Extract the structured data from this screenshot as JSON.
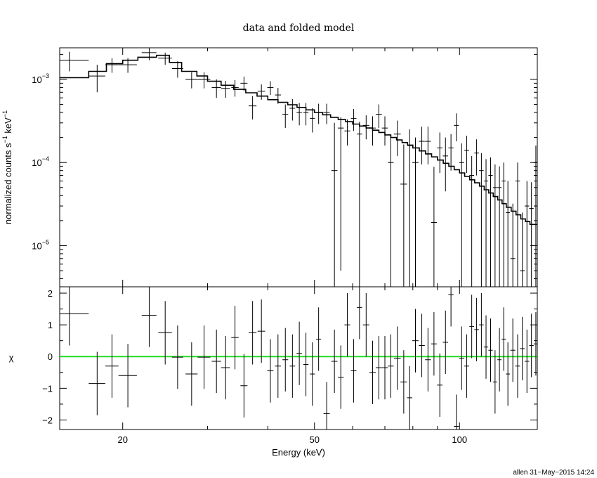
{
  "chart_data": [
    {
      "panel": "top",
      "type": "scatter",
      "title": "data and folded model",
      "xlabel": "",
      "ylabel": "normalized counts s^-1 keV^-1",
      "ylabel_parts": [
        "normalized counts s",
        "−1",
        " keV",
        "−1"
      ],
      "xscale": "log",
      "yscale": "log",
      "xlim": [
        14.8,
        145
      ],
      "ylim": [
        3.2e-06,
        0.0024
      ],
      "y_ticks": [
        {
          "value": 0.001,
          "base": "10",
          "exp": "−3"
        },
        {
          "value": 0.0001,
          "base": "10",
          "exp": "−4"
        },
        {
          "value": 1e-05,
          "base": "10",
          "exp": "−5"
        }
      ],
      "data_color": "#000000",
      "model_color": "#000000",
      "data": [
        [
          15.5,
          1.5,
          0.0017,
          0.00045,
          0.00045
        ],
        [
          17.7,
          0.7,
          0.0011,
          0.0004,
          0.0004
        ],
        [
          19.0,
          0.6,
          0.0015,
          0.0003,
          0.0003
        ],
        [
          20.5,
          0.9,
          0.0015,
          0.0003,
          0.0003
        ],
        [
          22.7,
          0.8,
          0.0021,
          0.0004,
          0.0004
        ],
        [
          24.5,
          0.8,
          0.0018,
          0.0003,
          0.0003
        ],
        [
          26.0,
          0.7,
          0.00135,
          0.0003,
          0.0003
        ],
        [
          27.8,
          0.8,
          0.001,
          0.00022,
          0.00022
        ],
        [
          29.5,
          0.9,
          0.001,
          0.00022,
          0.00022
        ],
        [
          31.3,
          0.7,
          0.0008,
          0.0002,
          0.0002
        ],
        [
          32.7,
          0.7,
          0.00078,
          0.00018,
          0.00018
        ],
        [
          34.2,
          0.6,
          0.0008,
          0.00018,
          0.00018
        ],
        [
          35.7,
          0.6,
          0.0009,
          0.00018,
          0.00018
        ],
        [
          37.2,
          0.7,
          0.00048,
          0.00015,
          0.00015
        ],
        [
          38.8,
          0.7,
          0.00072,
          0.00015,
          0.00015
        ],
        [
          40.5,
          0.6,
          0.0008,
          0.00015,
          0.00015
        ],
        [
          42.0,
          0.6,
          0.00065,
          0.00014,
          0.00014
        ],
        [
          43.5,
          0.6,
          0.00038,
          0.00012,
          0.00012
        ],
        [
          45.0,
          0.6,
          0.00045,
          0.00013,
          0.00013
        ],
        [
          46.5,
          0.6,
          0.0004,
          0.00012,
          0.00012
        ],
        [
          48.0,
          0.6,
          0.0004,
          0.00012,
          0.00012
        ],
        [
          49.5,
          0.6,
          0.00034,
          0.00011,
          0.00011
        ],
        [
          51.0,
          0.6,
          0.0004,
          0.00011,
          0.00011
        ],
        [
          53.0,
          0.8,
          0.0004,
          0.00011,
          0.00011
        ],
        [
          55.0,
          0.8,
          8e-05,
          0.00022,
          7.9e-05
        ],
        [
          56.7,
          0.8,
          0.00026,
          9e-05,
          0.000255
        ],
        [
          58.5,
          0.8,
          0.00024,
          9e-05,
          8e-05
        ],
        [
          60.3,
          0.8,
          0.00034,
          0.0001,
          0.0001
        ],
        [
          62.0,
          0.8,
          0.00022,
          9e-05,
          0.000218
        ],
        [
          64.0,
          1.0,
          0.00028,
          9e-05,
          9e-05
        ],
        [
          66.0,
          1.0,
          0.00026,
          0.0001,
          0.0001
        ],
        [
          68.0,
          1.0,
          0.00038,
          0.00012,
          0.00012
        ],
        [
          70.0,
          1.0,
          0.00026,
          0.0001,
          0.0001
        ],
        [
          72.0,
          1.0,
          0.0001,
          0.00011,
          9.9e-05
        ],
        [
          74.3,
          1.2,
          0.00022,
          0.0001,
          0.0001
        ],
        [
          76.6,
          1.2,
          5.5e-05,
          0.00011,
          5.4e-05
        ],
        [
          78.8,
          1.0,
          0.00016,
          9e-05,
          0.000159
        ],
        [
          81.0,
          1.2,
          0.0001,
          0.0001,
          9.9e-05
        ],
        [
          83.5,
          1.2,
          0.00018,
          9e-05,
          8.5e-05
        ],
        [
          86.0,
          1.2,
          0.00018,
          9e-05,
          8.5e-05
        ],
        [
          88.5,
          1.2,
          1.9e-05,
          7e-05,
          1.8e-05
        ],
        [
          91.0,
          1.2,
          0.00015,
          8e-05,
          7.5e-05
        ],
        [
          93.5,
          1.2,
          0.00012,
          8e-05,
          7.5e-05
        ],
        [
          96.0,
          1.2,
          0.00015,
          7e-05,
          7e-05
        ],
        [
          98.5,
          1.2,
          0.00028,
          0.00011,
          0.0001
        ],
        [
          101.0,
          1.2,
          0.0001,
          7e-05,
          9.9e-05
        ],
        [
          103.5,
          1.2,
          0.00014,
          7e-05,
          6.5e-05
        ],
        [
          106.0,
          1.2,
          7e-05,
          5e-05,
          6.9e-05
        ],
        [
          108.5,
          1.2,
          0.00013,
          6e-05,
          6e-05
        ],
        [
          111.0,
          1.2,
          8e-05,
          5e-05,
          7.9e-05
        ],
        [
          113.5,
          1.2,
          6e-05,
          5e-05,
          5.9e-05
        ],
        [
          116.0,
          1.2,
          7e-05,
          4.5e-05,
          6.9e-05
        ],
        [
          118.5,
          1.2,
          5e-05,
          4.5e-05,
          4.9e-05
        ],
        [
          121.0,
          1.2,
          5e-05,
          4e-05,
          4.9e-05
        ],
        [
          123.5,
          1.2,
          6e-05,
          4e-05,
          5.9e-05
        ],
        [
          126.0,
          1.2,
          2.5e-05,
          3.5e-05,
          2.4e-05
        ],
        [
          129.0,
          1.5,
          7e-06,
          2.5e-05,
          3.8e-06
        ],
        [
          132.0,
          1.5,
          6e-05,
          4e-05,
          5.9e-05
        ],
        [
          135.0,
          1.5,
          5e-06,
          2e-05,
          1.8e-06
        ],
        [
          138.0,
          1.5,
          3e-05,
          3e-05,
          2.9e-05
        ],
        [
          141.0,
          1.5,
          2.8e-05,
          3e-05,
          2.7e-05
        ],
        [
          144.0,
          1.5,
          0.0001,
          6e-05,
          9.9e-05
        ]
      ],
      "model": [
        [
          14.8,
          0.00105
        ],
        [
          17.0,
          0.00105
        ],
        [
          17.0,
          0.00125
        ],
        [
          18.5,
          0.00125
        ],
        [
          18.5,
          0.00155
        ],
        [
          20.0,
          0.00155
        ],
        [
          20.0,
          0.0017
        ],
        [
          21.5,
          0.0017
        ],
        [
          21.5,
          0.00185
        ],
        [
          23.5,
          0.00185
        ],
        [
          23.5,
          0.00195
        ],
        [
          25.0,
          0.00195
        ],
        [
          25.0,
          0.0016
        ],
        [
          26.5,
          0.0016
        ],
        [
          26.5,
          0.00125
        ],
        [
          28.5,
          0.00125
        ],
        [
          28.5,
          0.0011
        ],
        [
          30.0,
          0.0011
        ],
        [
          30.0,
          0.00095
        ],
        [
          32.0,
          0.00095
        ],
        [
          32.0,
          0.00085
        ],
        [
          34.0,
          0.00085
        ],
        [
          34.0,
          0.00076
        ],
        [
          36.0,
          0.00076
        ],
        [
          36.0,
          0.00069
        ],
        [
          38.0,
          0.00069
        ],
        [
          38.0,
          0.00063
        ],
        [
          40.0,
          0.00063
        ],
        [
          40.0,
          0.00057
        ],
        [
          42.0,
          0.00057
        ],
        [
          42.0,
          0.00053
        ],
        [
          44.0,
          0.00053
        ],
        [
          44.0,
          0.000495
        ],
        [
          46.0,
          0.000495
        ],
        [
          46.0,
          0.00046
        ],
        [
          48.0,
          0.00046
        ],
        [
          48.0,
          0.00043
        ],
        [
          50.0,
          0.00043
        ],
        [
          50.0,
          0.0004
        ],
        [
          52.0,
          0.0004
        ],
        [
          52.0,
          0.000375
        ],
        [
          54.0,
          0.000375
        ],
        [
          54.0,
          0.00035
        ],
        [
          56.0,
          0.00035
        ],
        [
          56.0,
          0.00033
        ],
        [
          58.0,
          0.00033
        ],
        [
          58.0,
          0.00031
        ],
        [
          60.0,
          0.00031
        ],
        [
          60.0,
          0.00029
        ],
        [
          62.0,
          0.00029
        ],
        [
          62.0,
          0.000275
        ],
        [
          64.0,
          0.000275
        ],
        [
          64.0,
          0.00026
        ],
        [
          66.0,
          0.00026
        ],
        [
          66.0,
          0.000245
        ],
        [
          68.0,
          0.000245
        ],
        [
          68.0,
          0.00023
        ],
        [
          70.0,
          0.00023
        ],
        [
          70.0,
          0.000215
        ],
        [
          72.0,
          0.000215
        ],
        [
          72.0,
          0.0002
        ],
        [
          74.0,
          0.0002
        ],
        [
          74.0,
          0.000187
        ],
        [
          76.0,
          0.000187
        ],
        [
          76.0,
          0.000174
        ],
        [
          78.0,
          0.000174
        ],
        [
          78.0,
          0.000162
        ],
        [
          80.0,
          0.000162
        ],
        [
          80.0,
          0.00015
        ],
        [
          82.5,
          0.00015
        ],
        [
          82.5,
          0.000138
        ],
        [
          85.0,
          0.000138
        ],
        [
          85.0,
          0.000127
        ],
        [
          87.5,
          0.000127
        ],
        [
          87.5,
          0.000117
        ],
        [
          90.0,
          0.000117
        ],
        [
          90.0,
          0.000107
        ],
        [
          92.5,
          0.000107
        ],
        [
          92.5,
          9.8e-05
        ],
        [
          95.0,
          9.8e-05
        ],
        [
          95.0,
          9e-05
        ],
        [
          97.5,
          9e-05
        ],
        [
          97.5,
          8.2e-05
        ],
        [
          100.0,
          8.2e-05
        ],
        [
          100.0,
          7.5e-05
        ],
        [
          102.5,
          7.5e-05
        ],
        [
          102.5,
          6.8e-05
        ],
        [
          105.0,
          6.8e-05
        ],
        [
          105.0,
          6.2e-05
        ],
        [
          107.5,
          6.2e-05
        ],
        [
          107.5,
          5.7e-05
        ],
        [
          110.0,
          5.7e-05
        ],
        [
          110.0,
          5.2e-05
        ],
        [
          112.5,
          5.2e-05
        ],
        [
          112.5,
          4.7e-05
        ],
        [
          115.0,
          4.7e-05
        ],
        [
          115.0,
          4.3e-05
        ],
        [
          117.5,
          4.3e-05
        ],
        [
          117.5,
          3.9e-05
        ],
        [
          120.0,
          3.9e-05
        ],
        [
          120.0,
          3.55e-05
        ],
        [
          122.5,
          3.55e-05
        ],
        [
          122.5,
          3.2e-05
        ],
        [
          125.0,
          3.2e-05
        ],
        [
          125.0,
          2.9e-05
        ],
        [
          128.0,
          2.9e-05
        ],
        [
          128.0,
          2.6e-05
        ],
        [
          131.0,
          2.6e-05
        ],
        [
          131.0,
          2.35e-05
        ],
        [
          134.0,
          2.35e-05
        ],
        [
          134.0,
          2.1e-05
        ],
        [
          137.0,
          2.1e-05
        ],
        [
          137.0,
          1.95e-05
        ],
        [
          140.0,
          1.95e-05
        ],
        [
          140.0,
          1.8e-05
        ],
        [
          145.0,
          1.8e-05
        ]
      ]
    },
    {
      "panel": "bottom",
      "type": "scatter",
      "title": "",
      "xlabel": "Energy (keV)",
      "ylabel": "χ",
      "xscale": "log",
      "xlim": [
        14.8,
        145
      ],
      "ylim": [
        -2.3,
        2.2
      ],
      "x_ticks": [
        20,
        50,
        100
      ],
      "x_tick_labels": [
        "20",
        "50",
        "100"
      ],
      "y_ticks": [
        2,
        1,
        0,
        -1,
        -2
      ],
      "y_tick_labels": [
        "2",
        "1",
        "0",
        "−1",
        "−2"
      ],
      "zero_line_color": "#22dd22",
      "data": [
        [
          15.5,
          1.5,
          1.35,
          1
        ],
        [
          17.7,
          0.7,
          -0.85,
          1
        ],
        [
          19.0,
          0.6,
          -0.3,
          1
        ],
        [
          20.5,
          0.9,
          -0.6,
          1
        ],
        [
          22.7,
          0.8,
          1.3,
          1
        ],
        [
          24.5,
          0.8,
          0.75,
          1
        ],
        [
          26.0,
          0.7,
          -0.02,
          1
        ],
        [
          27.8,
          0.8,
          -0.55,
          1
        ],
        [
          29.5,
          0.9,
          -0.02,
          1
        ],
        [
          31.3,
          0.7,
          -0.15,
          1
        ],
        [
          32.7,
          0.7,
          -0.35,
          1
        ],
        [
          34.2,
          0.6,
          0.6,
          1
        ],
        [
          35.7,
          0.6,
          -0.92,
          1
        ],
        [
          37.2,
          0.7,
          0.75,
          1
        ],
        [
          38.8,
          0.7,
          0.8,
          1
        ],
        [
          40.5,
          0.6,
          -0.45,
          1
        ],
        [
          42.0,
          0.6,
          -0.3,
          1
        ],
        [
          43.5,
          0.6,
          -0.1,
          1
        ],
        [
          45.0,
          0.6,
          -0.3,
          1
        ],
        [
          46.5,
          0.6,
          0.1,
          1
        ],
        [
          48.0,
          0.6,
          -0.25,
          1
        ],
        [
          49.5,
          0.6,
          -0.55,
          1
        ],
        [
          51.0,
          0.6,
          0.55,
          1
        ],
        [
          53.0,
          0.8,
          -1.8,
          1
        ],
        [
          55.0,
          0.8,
          -0.15,
          1
        ],
        [
          56.7,
          0.8,
          -0.65,
          1
        ],
        [
          58.5,
          0.8,
          1.0,
          1
        ],
        [
          60.3,
          0.8,
          -0.45,
          1
        ],
        [
          62.0,
          0.8,
          1.55,
          1
        ],
        [
          64.0,
          1.0,
          1.0,
          1
        ],
        [
          66.0,
          1.0,
          -0.5,
          1
        ],
        [
          68.0,
          1.0,
          -0.35,
          1
        ],
        [
          70.0,
          1.0,
          -0.35,
          1
        ],
        [
          72.0,
          1.0,
          -0.3,
          1
        ],
        [
          74.3,
          1.2,
          -0.05,
          1
        ],
        [
          76.6,
          1.2,
          -0.8,
          1
        ],
        [
          78.8,
          1.0,
          -1.3,
          1
        ],
        [
          81.0,
          1.2,
          0.5,
          1
        ],
        [
          83.5,
          1.2,
          0.35,
          1
        ],
        [
          86.0,
          1.2,
          -0.1,
          1
        ],
        [
          88.5,
          1.2,
          0.4,
          1
        ],
        [
          91.0,
          1.2,
          -0.9,
          1
        ],
        [
          93.5,
          1.2,
          0.45,
          1
        ],
        [
          96.0,
          1.2,
          1.95,
          1
        ],
        [
          98.5,
          1.2,
          -2.2,
          1
        ],
        [
          101.0,
          1.2,
          -0.05,
          1
        ],
        [
          103.5,
          1.2,
          -0.3,
          1
        ],
        [
          106.0,
          1.2,
          0.95,
          1
        ],
        [
          108.5,
          1.2,
          0.85,
          1
        ],
        [
          111.0,
          1.2,
          1.0,
          1
        ],
        [
          113.5,
          1.2,
          0.3,
          1
        ],
        [
          116.0,
          1.2,
          0.2,
          1
        ],
        [
          118.5,
          1.2,
          -0.8,
          1
        ],
        [
          121.0,
          1.2,
          -0.1,
          1
        ],
        [
          123.5,
          1.2,
          0.55,
          1
        ],
        [
          126.0,
          1.2,
          -0.55,
          1
        ],
        [
          129.0,
          1.5,
          0.2,
          1
        ],
        [
          132.0,
          1.5,
          -0.3,
          1
        ],
        [
          135.0,
          1.5,
          0.25,
          1
        ],
        [
          138.0,
          1.5,
          -0.15,
          1
        ],
        [
          141.0,
          1.5,
          0.35,
          1
        ],
        [
          144.0,
          1.5,
          0.4,
          1
        ]
      ]
    }
  ],
  "footer": {
    "credit": "allen 31−May−2015 14:24"
  }
}
